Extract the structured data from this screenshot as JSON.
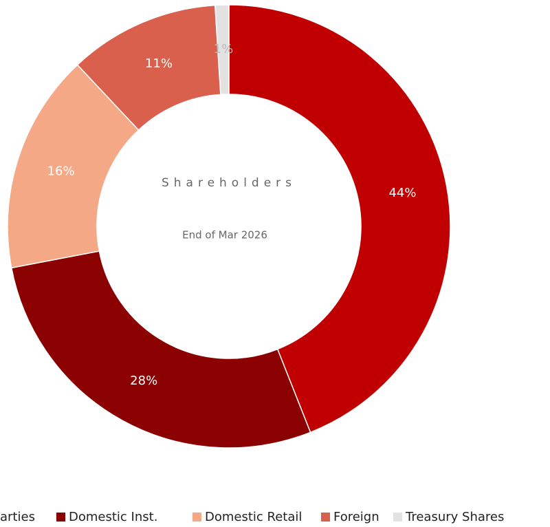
{
  "chart_data": {
    "type": "pie",
    "center_title": "Shareholders",
    "center_subtitle": "End of Mar 2026",
    "categories": [
      "arties",
      "Domestic Inst.",
      "Domestic Retail",
      "Foreign",
      "Treasury Shares"
    ],
    "values": [
      44,
      28,
      16,
      11,
      1
    ],
    "value_labels": [
      "44%",
      "28%",
      "16%",
      "11%",
      "1%"
    ],
    "colors": [
      "#c00000",
      "#8b0000",
      "#f4a886",
      "#d9604c",
      "#e2e2e2"
    ]
  }
}
